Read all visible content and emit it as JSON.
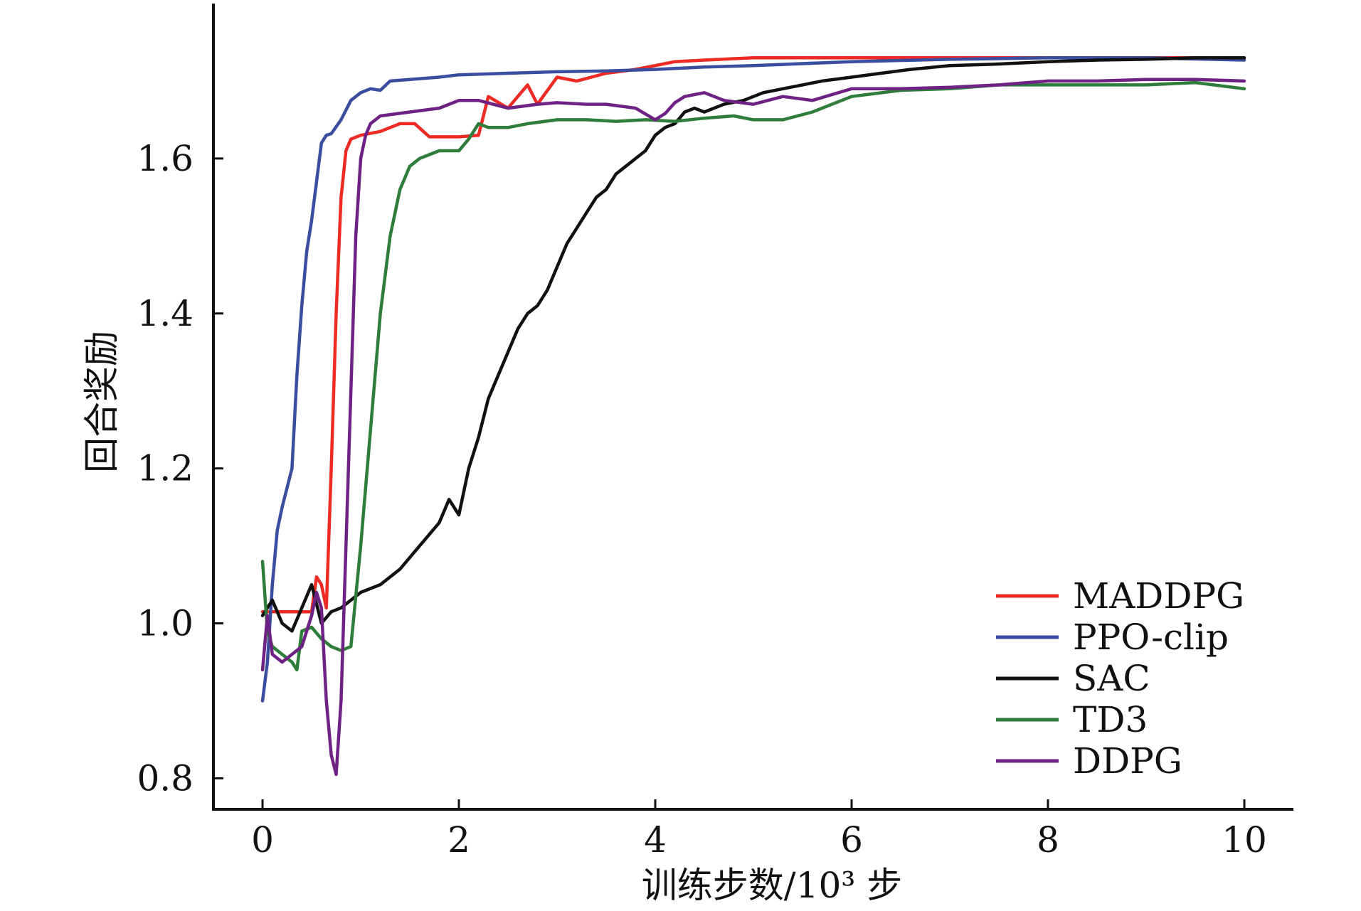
{
  "chart_data": {
    "type": "line",
    "xlabel": "训练步数/10³ 步",
    "ylabel": "回合奖励",
    "xlim": [
      -0.5,
      10.5
    ],
    "ylim": [
      0.76,
      1.8
    ],
    "x_ticks": [
      0,
      2,
      4,
      6,
      8,
      10
    ],
    "y_ticks": [
      0.8,
      1.0,
      1.2,
      1.4,
      1.6
    ],
    "x_tick_labels": [
      "0",
      "2",
      "4",
      "6",
      "8",
      "10"
    ],
    "y_tick_labels": [
      "0.8",
      "1.0",
      "1.2",
      "1.4",
      "1.6"
    ],
    "grid": false,
    "legend_position": "bottom-right",
    "series": [
      {
        "name": "MADDPG",
        "color": "#ee2a24",
        "x": [
          0,
          0.05,
          0.3,
          0.5,
          0.55,
          0.6,
          0.65,
          0.7,
          0.75,
          0.8,
          0.85,
          0.9,
          1.0,
          1.2,
          1.4,
          1.55,
          1.7,
          2.0,
          2.2,
          2.3,
          2.5,
          2.7,
          2.8,
          3.0,
          3.2,
          3.5,
          3.8,
          4.0,
          4.2,
          4.5,
          5.0,
          6.0,
          7.0,
          8.0,
          9.0,
          10.0
        ],
        "y": [
          1.015,
          1.015,
          1.015,
          1.015,
          1.06,
          1.05,
          1.02,
          1.2,
          1.4,
          1.55,
          1.61,
          1.625,
          1.63,
          1.635,
          1.645,
          1.645,
          1.628,
          1.628,
          1.63,
          1.68,
          1.665,
          1.695,
          1.67,
          1.705,
          1.7,
          1.71,
          1.715,
          1.72,
          1.725,
          1.727,
          1.73,
          1.73,
          1.73,
          1.73,
          1.73,
          1.73
        ]
      },
      {
        "name": "PPO-clip",
        "color": "#3a4d9f",
        "x": [
          0,
          0.05,
          0.1,
          0.15,
          0.2,
          0.3,
          0.35,
          0.4,
          0.45,
          0.5,
          0.55,
          0.6,
          0.65,
          0.7,
          0.8,
          0.9,
          1.0,
          1.1,
          1.2,
          1.3,
          1.5,
          1.8,
          2.0,
          2.5,
          3.0,
          3.5,
          4.0,
          4.5,
          5.0,
          6.0,
          7.0,
          8.0,
          9.0,
          10.0
        ],
        "y": [
          0.9,
          0.95,
          1.05,
          1.12,
          1.15,
          1.2,
          1.32,
          1.41,
          1.48,
          1.52,
          1.57,
          1.62,
          1.63,
          1.632,
          1.65,
          1.675,
          1.685,
          1.69,
          1.688,
          1.7,
          1.702,
          1.705,
          1.708,
          1.71,
          1.712,
          1.713,
          1.715,
          1.718,
          1.72,
          1.725,
          1.728,
          1.73,
          1.73,
          1.727
        ]
      },
      {
        "name": "SAC",
        "color": "#111111",
        "x": [
          0,
          0.1,
          0.2,
          0.3,
          0.4,
          0.5,
          0.6,
          0.7,
          0.8,
          0.9,
          1.0,
          1.2,
          1.4,
          1.6,
          1.8,
          1.9,
          2.0,
          2.1,
          2.2,
          2.3,
          2.4,
          2.5,
          2.6,
          2.7,
          2.8,
          2.9,
          3.0,
          3.1,
          3.2,
          3.3,
          3.4,
          3.5,
          3.6,
          3.7,
          3.8,
          3.9,
          4.0,
          4.1,
          4.2,
          4.3,
          4.4,
          4.5,
          4.7,
          4.9,
          5.1,
          5.3,
          5.5,
          5.7,
          6.0,
          6.3,
          6.6,
          7.0,
          7.5,
          8.0,
          8.5,
          9.0,
          9.5,
          10.0
        ],
        "y": [
          1.01,
          1.03,
          1.0,
          0.99,
          1.02,
          1.05,
          1.0,
          1.015,
          1.02,
          1.03,
          1.04,
          1.05,
          1.07,
          1.1,
          1.13,
          1.16,
          1.14,
          1.2,
          1.24,
          1.29,
          1.32,
          1.35,
          1.38,
          1.4,
          1.41,
          1.43,
          1.46,
          1.49,
          1.51,
          1.53,
          1.55,
          1.56,
          1.58,
          1.59,
          1.6,
          1.61,
          1.63,
          1.64,
          1.645,
          1.66,
          1.665,
          1.66,
          1.67,
          1.675,
          1.685,
          1.69,
          1.695,
          1.7,
          1.705,
          1.71,
          1.715,
          1.72,
          1.722,
          1.725,
          1.727,
          1.728,
          1.73,
          1.73
        ]
      },
      {
        "name": "TD3",
        "color": "#2e7d3a",
        "x": [
          0,
          0.05,
          0.1,
          0.2,
          0.3,
          0.35,
          0.4,
          0.5,
          0.6,
          0.7,
          0.8,
          0.9,
          1.0,
          1.1,
          1.2,
          1.3,
          1.4,
          1.5,
          1.6,
          1.7,
          1.8,
          2.0,
          2.1,
          2.2,
          2.3,
          2.5,
          2.7,
          3.0,
          3.3,
          3.6,
          3.9,
          4.2,
          4.5,
          4.8,
          5.0,
          5.3,
          5.6,
          6.0,
          6.5,
          7.0,
          7.5,
          8.0,
          8.5,
          9.0,
          9.5,
          10.0
        ],
        "y": [
          1.08,
          0.99,
          0.97,
          0.96,
          0.95,
          0.94,
          0.99,
          0.995,
          0.98,
          0.97,
          0.965,
          0.97,
          1.1,
          1.25,
          1.4,
          1.5,
          1.56,
          1.59,
          1.6,
          1.605,
          1.61,
          1.61,
          1.625,
          1.645,
          1.64,
          1.64,
          1.645,
          1.65,
          1.65,
          1.648,
          1.65,
          1.648,
          1.652,
          1.655,
          1.65,
          1.65,
          1.66,
          1.68,
          1.688,
          1.69,
          1.695,
          1.695,
          1.695,
          1.695,
          1.698,
          1.69
        ]
      },
      {
        "name": "DDPG",
        "color": "#6e2283",
        "x": [
          0,
          0.05,
          0.1,
          0.2,
          0.3,
          0.4,
          0.5,
          0.55,
          0.6,
          0.65,
          0.7,
          0.75,
          0.8,
          0.85,
          0.9,
          0.95,
          1.0,
          1.05,
          1.1,
          1.2,
          1.5,
          1.8,
          2.0,
          2.2,
          2.5,
          2.8,
          3.0,
          3.3,
          3.5,
          3.8,
          4.0,
          4.1,
          4.2,
          4.3,
          4.5,
          4.7,
          5.0,
          5.3,
          5.6,
          6.0,
          6.5,
          7.0,
          7.5,
          8.0,
          8.5,
          9.0,
          9.5,
          10.0
        ],
        "y": [
          0.94,
          1.01,
          0.96,
          0.95,
          0.96,
          0.97,
          1.01,
          1.04,
          1.02,
          0.9,
          0.83,
          0.805,
          0.9,
          1.1,
          1.3,
          1.5,
          1.6,
          1.63,
          1.645,
          1.655,
          1.66,
          1.665,
          1.675,
          1.675,
          1.665,
          1.67,
          1.672,
          1.67,
          1.67,
          1.665,
          1.65,
          1.658,
          1.672,
          1.68,
          1.685,
          1.675,
          1.67,
          1.68,
          1.675,
          1.69,
          1.69,
          1.692,
          1.695,
          1.7,
          1.7,
          1.702,
          1.702,
          1.7
        ]
      }
    ]
  }
}
